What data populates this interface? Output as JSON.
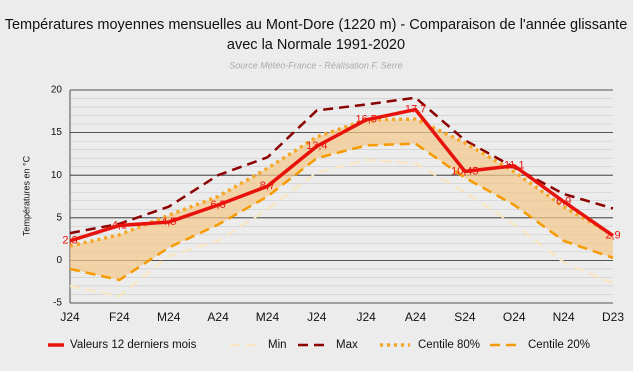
{
  "chart_data": {
    "type": "line",
    "title": [
      "Températures moyennes mensuelles au Mont-Dore (1220 m) - Comparaison de l'année glissante",
      "avec la Normale 1991-2020"
    ],
    "subtitle": "Source Météo-France - Réalisation F. Serre",
    "ylabel": "Températures en °C",
    "categories": [
      "J24",
      "F24",
      "M24",
      "A24",
      "M24",
      "J24",
      "J24",
      "A24",
      "S24",
      "O24",
      "N24",
      "D23"
    ],
    "ylim": [
      -5,
      20
    ],
    "yticks": [
      -5,
      0,
      5,
      10,
      15,
      20
    ],
    "minor_yticks": [
      -4,
      -3,
      -2,
      -1,
      1,
      2,
      3,
      4,
      6,
      7,
      8,
      9,
      11,
      12,
      13,
      14,
      16,
      17,
      18,
      19
    ],
    "grid": true,
    "band_fill": "#f5c98a",
    "series": [
      {
        "name": "Valeurs 12 derniers mois",
        "color": "#e8120c",
        "dash": "solid",
        "values": [
          2.3,
          4.1,
          4.5,
          6.5,
          8.7,
          13.4,
          16.5,
          17.7,
          10.45,
          11.1,
          6.9,
          2.9
        ],
        "value_labels": [
          "2,3",
          "4,1",
          "4,5",
          "6,5",
          "8,7",
          "13,4",
          "16,5",
          "17,7",
          "10,45",
          "11,1",
          "6,9",
          "2,9"
        ]
      },
      {
        "name": "Min",
        "color": "#f7e6c4",
        "dash": "dashed",
        "values": [
          -3,
          -4.2,
          0.5,
          2.3,
          6,
          10.3,
          11.8,
          11.4,
          8,
          4.2,
          -0.2,
          -2.7
        ]
      },
      {
        "name": "Max",
        "color": "#8b0000",
        "dash": "dashed",
        "values": [
          3.2,
          4.3,
          6.3,
          10,
          12.1,
          17.6,
          18.3,
          19.1,
          14.1,
          10.9,
          7.8,
          6.1
        ]
      },
      {
        "name": "Centile 80%",
        "color": "#f5a623",
        "dash": "dotted",
        "values": [
          1.7,
          3,
          5.3,
          7.5,
          10.8,
          14.5,
          16.5,
          16.6,
          13.8,
          10.4,
          6.3,
          3
        ]
      },
      {
        "name": "Centile 20%",
        "color": "#f59b00",
        "dash": "dashed",
        "values": [
          -1,
          -2.3,
          1.5,
          4.2,
          7.5,
          12,
          13.5,
          13.7,
          9.7,
          6.5,
          2.3,
          0.3
        ]
      }
    ]
  }
}
